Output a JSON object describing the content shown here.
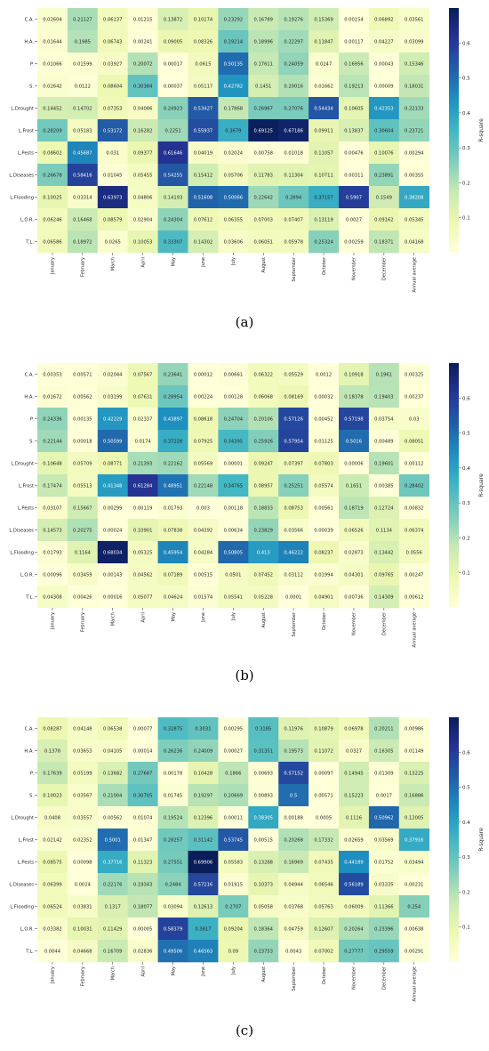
{
  "rows": [
    "C.A.",
    "H.A.",
    "P.",
    "S.",
    "L.Drought",
    "L.Frost",
    "L.Pests",
    "L.Diseases",
    "L.Flooding",
    "L.O.R.",
    "T.L."
  ],
  "columns": [
    "January",
    "February",
    "March",
    "April",
    "May",
    "June",
    "July",
    "August",
    "September",
    "October",
    "November",
    "December",
    "Annual average"
  ],
  "colorbar": {
    "label": "R-square",
    "ticks": [
      "0.1",
      "0.2",
      "0.3",
      "0.4",
      "0.5",
      "0.6"
    ]
  },
  "chart_data": [
    {
      "type": "heatmap",
      "panel_label": "(a)",
      "rows": [
        "C.A.",
        "H.A.",
        "P.",
        "S.",
        "L.Drought",
        "L.Frost",
        "L.Pests",
        "L.Diseases",
        "L.Flooding",
        "L.O.R.",
        "T.L."
      ],
      "columns": [
        "January",
        "February",
        "March",
        "April",
        "May",
        "June",
        "July",
        "August",
        "September",
        "October",
        "November",
        "December",
        "Annual average"
      ],
      "values": [
        [
          0.02604,
          0.21127,
          0.06137,
          0.01215,
          0.13872,
          0.10174,
          0.23292,
          0.16789,
          0.19276,
          0.15369,
          0.00154,
          0.06892,
          0.03561
        ],
        [
          0.01644,
          0.1985,
          0.06743,
          0.00241,
          0.09005,
          0.08326,
          0.29214,
          0.18996,
          0.22297,
          0.11847,
          0.00117,
          0.04227,
          0.03099
        ],
        [
          0.01066,
          0.01599,
          0.03927,
          0.20072,
          0.00017,
          0.0615,
          0.50135,
          0.17611,
          0.24059,
          0.0247,
          0.16956,
          0.00043,
          0.15346
        ],
        [
          0.02642,
          0.0122,
          0.08604,
          0.30384,
          0.00037,
          0.05117,
          0.42782,
          0.1451,
          0.20016,
          0.01662,
          0.19213,
          9e-05,
          0.18031
        ],
        [
          0.14452,
          0.14702,
          0.07353,
          0.04086,
          0.24923,
          0.53427,
          0.17868,
          0.26967,
          0.27076,
          0.54434,
          0.10605,
          0.42353,
          0.22133
        ],
        [
          0.28209,
          0.05183,
          0.53172,
          0.16282,
          0.2251,
          0.55937,
          0.3679,
          0.69125,
          0.67186,
          0.09911,
          0.13837,
          0.30604,
          0.23721
        ],
        [
          0.08602,
          0.45687,
          0.031,
          0.09377,
          0.61646,
          0.04019,
          0.02024,
          0.00758,
          0.01018,
          0.11057,
          0.00476,
          0.10076,
          0.00294
        ],
        [
          0.26678,
          0.58416,
          0.01045,
          0.05455,
          0.54255,
          0.15412,
          0.05706,
          0.11783,
          0.11304,
          0.10711,
          0.00311,
          0.23891,
          0.00355
        ],
        [
          0.10025,
          0.03314,
          0.63973,
          0.04806,
          0.14193,
          0.51608,
          0.50066,
          0.22642,
          0.2894,
          0.37157,
          0.5907,
          0.1549,
          0.38208
        ],
        [
          0.06246,
          0.16468,
          0.08579,
          0.02904,
          0.24304,
          0.07612,
          0.06355,
          0.07003,
          0.07407,
          0.13119,
          0.0027,
          0.09162,
          0.05345
        ],
        [
          0.06586,
          0.18972,
          0.0265,
          0.10053,
          0.33307,
          0.14302,
          0.03606,
          0.06051,
          0.05978,
          0.25324,
          0.00259,
          0.18371,
          0.04168
        ]
      ],
      "colorbar_label": "R-square",
      "vmin": 0,
      "vmax": 0.7
    },
    {
      "type": "heatmap",
      "panel_label": "(b)",
      "rows": [
        "C.A.",
        "H.A.",
        "P.",
        "S.",
        "L.Drought",
        "L.Frost",
        "L.Pests",
        "L.Diseases",
        "L.Flooding",
        "L.O.R.",
        "T.L."
      ],
      "columns": [
        "January",
        "February",
        "March",
        "April",
        "May",
        "June",
        "July",
        "August",
        "September",
        "October",
        "November",
        "December",
        "Annual average"
      ],
      "values": [
        [
          0.00353,
          0.00571,
          0.02044,
          0.07567,
          0.23641,
          0.00012,
          0.00661,
          0.06322,
          0.05529,
          0.0012,
          0.10918,
          0.1961,
          0.00325
        ],
        [
          0.01672,
          0.00562,
          0.03199,
          0.07631,
          0.28954,
          0.00224,
          0.00128,
          0.06068,
          0.08169,
          0.00032,
          0.18378,
          0.19403,
          0.00237
        ],
        [
          0.24336,
          0.00135,
          0.42229,
          0.02337,
          0.43897,
          0.08618,
          0.24704,
          0.20106,
          0.57126,
          0.00452,
          0.57198,
          0.03754,
          0.03
        ],
        [
          0.22144,
          0.00018,
          0.50599,
          0.0174,
          0.37228,
          0.07925,
          0.34395,
          0.25926,
          0.57954,
          0.01125,
          0.5016,
          0.00489,
          0.08051
        ],
        [
          0.10648,
          0.05709,
          0.08771,
          0.21393,
          0.22162,
          0.05569,
          1e-05,
          0.09247,
          0.07397,
          0.07803,
          6e-05,
          0.19601,
          0.00112
        ],
        [
          0.17474,
          0.05513,
          0.41348,
          0.61284,
          0.48951,
          0.22148,
          0.34765,
          0.08957,
          0.25251,
          0.05574,
          0.1651,
          0.00385,
          0.28402
        ],
        [
          0.03107,
          0.15667,
          0.00299,
          0.00119,
          0.01793,
          0.003,
          0.00118,
          0.18833,
          0.08753,
          0.00561,
          0.18719,
          0.12724,
          0.00832
        ],
        [
          0.14573,
          0.20275,
          0.00024,
          0.10901,
          0.07838,
          0.04392,
          0.00634,
          0.23829,
          0.03566,
          0.00039,
          0.06526,
          0.1134,
          0.06374
        ],
        [
          0.01793,
          0.1164,
          0.68034,
          0.05325,
          0.45954,
          0.04284,
          0.50805,
          0.413,
          0.46222,
          0.08237,
          0.02873,
          0.13442,
          0.0556
        ],
        [
          0.00096,
          0.03459,
          0.00143,
          0.04562,
          0.07189,
          0.00515,
          0.0501,
          0.07452,
          0.03112,
          0.01994,
          0.04301,
          0.09765,
          0.00247
        ],
        [
          0.04308,
          0.00426,
          0.00016,
          0.05077,
          0.04624,
          0.01574,
          0.05541,
          0.05228,
          0.0001,
          0.04901,
          0.00736,
          0.14309,
          0.00612
        ]
      ],
      "colorbar_label": "R-square",
      "vmin": 0,
      "vmax": 0.7
    },
    {
      "type": "heatmap",
      "panel_label": "(c)",
      "rows": [
        "C.A.",
        "H.A.",
        "P.",
        "S.",
        "L.Drought",
        "L.Frost",
        "L.Pests",
        "L.Diseases",
        "L.Flooding",
        "L.O.R.",
        "T.L."
      ],
      "columns": [
        "January",
        "February",
        "March",
        "April",
        "May",
        "June",
        "July",
        "August",
        "September",
        "October",
        "November",
        "December",
        "Annual average"
      ],
      "values": [
        [
          0.08287,
          0.04148,
          0.06538,
          0.00077,
          0.32875,
          0.3031,
          0.00295,
          0.3185,
          0.11976,
          0.10879,
          0.06978,
          0.20211,
          0.00986
        ],
        [
          0.1378,
          0.03653,
          0.04105,
          0.00014,
          0.26236,
          0.24009,
          0.00027,
          0.31351,
          0.19573,
          0.11072,
          0.0327,
          0.16305,
          0.01149
        ],
        [
          0.17639,
          0.05199,
          0.13682,
          0.27687,
          0.00178,
          0.10428,
          0.1866,
          0.00693,
          0.57152,
          0.00097,
          0.14945,
          0.01309,
          0.13225
        ],
        [
          0.10023,
          0.03567,
          0.21004,
          0.30705,
          0.01745,
          0.19297,
          0.20669,
          0.00893,
          0.5,
          0.00571,
          0.15223,
          0.0017,
          0.16886
        ],
        [
          0.0408,
          0.03557,
          0.00562,
          0.01074,
          0.19524,
          0.12396,
          0.00011,
          0.38305,
          0.00188,
          0.0005,
          0.1116,
          0.50962,
          0.12005
        ],
        [
          0.02142,
          0.02352,
          0.5001,
          0.01347,
          0.28257,
          0.31142,
          0.53745,
          0.00515,
          0.20268,
          0.17332,
          0.02659,
          0.03569,
          0.37916
        ],
        [
          0.08575,
          0.00098,
          0.37716,
          0.11323,
          0.27551,
          0.69906,
          0.05583,
          0.13288,
          0.16969,
          0.07435,
          0.44189,
          0.01752,
          0.03494
        ],
        [
          0.06399,
          0.0024,
          0.22176,
          0.19343,
          0.2484,
          0.57216,
          0.01915,
          0.10373,
          0.04944,
          0.06546,
          0.56189,
          0.03335,
          0.00231
        ],
        [
          0.06524,
          0.03831,
          0.1317,
          0.18077,
          0.03094,
          0.12613,
          0.2707,
          0.05058,
          0.03768,
          0.05763,
          0.06009,
          0.11366,
          0.254
        ],
        [
          0.03382,
          0.10031,
          0.11429,
          5e-05,
          0.58379,
          0.3617,
          0.09204,
          0.18364,
          0.04759,
          0.12607,
          0.20264,
          0.23396,
          0.00638
        ],
        [
          0.0044,
          0.04668,
          0.16709,
          0.02836,
          0.49506,
          0.46563,
          0.09,
          0.23753,
          0.0043,
          0.07002,
          0.27777,
          0.29559,
          0.00291
        ]
      ],
      "colorbar_label": "R-square",
      "vmin": 0,
      "vmax": 0.7
    }
  ]
}
